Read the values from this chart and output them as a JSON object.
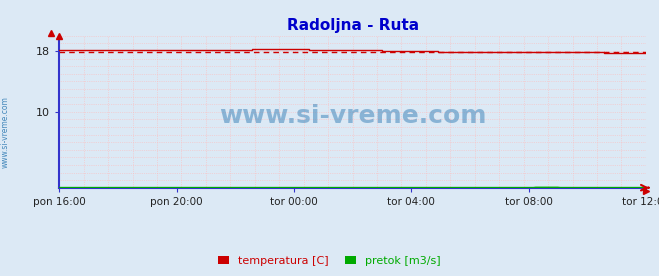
{
  "title": "Radoljna - Ruta",
  "title_color": "#0000cc",
  "background_color": "#dce9f5",
  "plot_bg_color": "#dce9f5",
  "xtick_labels": [
    "pon 16:00",
    "pon 20:00",
    "tor 00:00",
    "tor 04:00",
    "tor 08:00",
    "tor 12:00"
  ],
  "xtick_positions": [
    0,
    48,
    96,
    144,
    192,
    240
  ],
  "ymin": 0,
  "ymax": 20,
  "ytick_vals": [
    10,
    18
  ],
  "n_points": 241,
  "temp_color": "#cc0000",
  "pretok_color": "#00aa00",
  "temp_dashed_value": 17.82,
  "grid_color": "#ffbbbb",
  "grid_minor_color": "#ffe0e0",
  "axis_color": "#3333cc",
  "watermark": "www.si-vreme.com",
  "watermark_color": "#4488bb",
  "legend_temp_label": "temperatura [C]",
  "legend_pretok_label": "pretok [m3/s]",
  "sidebar_text": "www.si-vreme.com",
  "sidebar_color": "#4488bb"
}
